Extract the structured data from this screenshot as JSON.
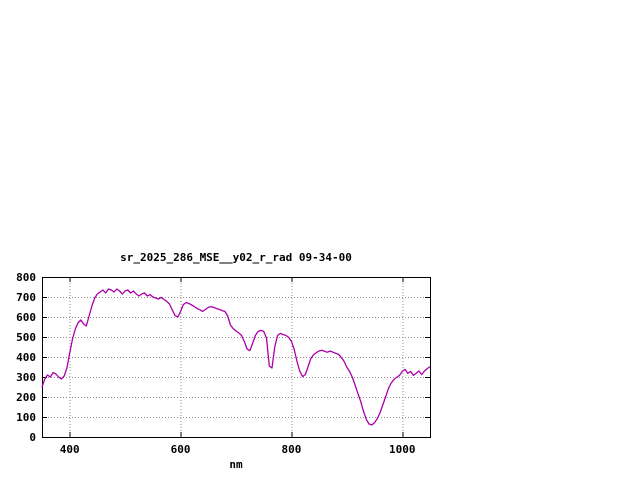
{
  "chart_data": {
    "type": "line",
    "title": "sr_2025_286_MSE__y02_r_rad 09-34-00",
    "xlabel": "nm",
    "ylabel": "",
    "xlim": [
      350,
      1050
    ],
    "ylim": [
      0,
      800
    ],
    "xticks": [
      400,
      600,
      800,
      1000
    ],
    "yticks": [
      0,
      100,
      200,
      300,
      400,
      500,
      600,
      700,
      800
    ],
    "grid": true,
    "legend_position": "none",
    "line_color": "#aa00aa",
    "series": [
      {
        "name": "sr_2025_286_MSE__y02_r_rad",
        "points": [
          [
            350,
            250
          ],
          [
            355,
            290
          ],
          [
            360,
            310
          ],
          [
            365,
            300
          ],
          [
            370,
            322
          ],
          [
            375,
            315
          ],
          [
            380,
            300
          ],
          [
            385,
            290
          ],
          [
            390,
            305
          ],
          [
            395,
            345
          ],
          [
            400,
            420
          ],
          [
            405,
            490
          ],
          [
            410,
            540
          ],
          [
            415,
            570
          ],
          [
            420,
            585
          ],
          [
            425,
            565
          ],
          [
            430,
            555
          ],
          [
            435,
            605
          ],
          [
            440,
            655
          ],
          [
            445,
            695
          ],
          [
            450,
            715
          ],
          [
            455,
            725
          ],
          [
            460,
            735
          ],
          [
            465,
            720
          ],
          [
            470,
            740
          ],
          [
            475,
            735
          ],
          [
            480,
            725
          ],
          [
            485,
            740
          ],
          [
            490,
            730
          ],
          [
            495,
            715
          ],
          [
            500,
            730
          ],
          [
            505,
            735
          ],
          [
            510,
            720
          ],
          [
            515,
            730
          ],
          [
            520,
            715
          ],
          [
            525,
            705
          ],
          [
            530,
            715
          ],
          [
            535,
            720
          ],
          [
            540,
            705
          ],
          [
            545,
            712
          ],
          [
            550,
            700
          ],
          [
            555,
            695
          ],
          [
            560,
            690
          ],
          [
            565,
            698
          ],
          [
            570,
            688
          ],
          [
            575,
            678
          ],
          [
            580,
            665
          ],
          [
            585,
            635
          ],
          [
            590,
            608
          ],
          [
            595,
            600
          ],
          [
            600,
            628
          ],
          [
            605,
            662
          ],
          [
            610,
            672
          ],
          [
            615,
            668
          ],
          [
            620,
            660
          ],
          [
            625,
            652
          ],
          [
            630,
            642
          ],
          [
            635,
            636
          ],
          [
            640,
            628
          ],
          [
            645,
            638
          ],
          [
            650,
            648
          ],
          [
            655,
            652
          ],
          [
            660,
            648
          ],
          [
            665,
            642
          ],
          [
            670,
            638
          ],
          [
            675,
            632
          ],
          [
            680,
            628
          ],
          [
            685,
            605
          ],
          [
            690,
            560
          ],
          [
            695,
            542
          ],
          [
            700,
            530
          ],
          [
            705,
            520
          ],
          [
            710,
            508
          ],
          [
            715,
            478
          ],
          [
            720,
            440
          ],
          [
            725,
            432
          ],
          [
            730,
            468
          ],
          [
            735,
            508
          ],
          [
            740,
            528
          ],
          [
            745,
            533
          ],
          [
            750,
            528
          ],
          [
            755,
            495
          ],
          [
            760,
            355
          ],
          [
            765,
            345
          ],
          [
            770,
            452
          ],
          [
            775,
            508
          ],
          [
            780,
            518
          ],
          [
            785,
            512
          ],
          [
            790,
            508
          ],
          [
            795,
            498
          ],
          [
            800,
            478
          ],
          [
            805,
            438
          ],
          [
            810,
            378
          ],
          [
            815,
            330
          ],
          [
            820,
            302
          ],
          [
            825,
            312
          ],
          [
            830,
            352
          ],
          [
            835,
            392
          ],
          [
            840,
            412
          ],
          [
            845,
            422
          ],
          [
            850,
            430
          ],
          [
            855,
            434
          ],
          [
            860,
            428
          ],
          [
            865,
            424
          ],
          [
            870,
            430
          ],
          [
            875,
            424
          ],
          [
            880,
            418
          ],
          [
            885,
            414
          ],
          [
            890,
            398
          ],
          [
            895,
            378
          ],
          [
            900,
            348
          ],
          [
            905,
            328
          ],
          [
            910,
            298
          ],
          [
            915,
            258
          ],
          [
            920,
            218
          ],
          [
            925,
            178
          ],
          [
            930,
            128
          ],
          [
            935,
            88
          ],
          [
            940,
            65
          ],
          [
            945,
            60
          ],
          [
            950,
            72
          ],
          [
            955,
            92
          ],
          [
            960,
            122
          ],
          [
            965,
            162
          ],
          [
            970,
            202
          ],
          [
            975,
            242
          ],
          [
            980,
            270
          ],
          [
            985,
            288
          ],
          [
            990,
            298
          ],
          [
            995,
            308
          ],
          [
            1000,
            328
          ],
          [
            1005,
            338
          ],
          [
            1010,
            318
          ],
          [
            1015,
            328
          ],
          [
            1020,
            308
          ],
          [
            1025,
            318
          ],
          [
            1030,
            330
          ],
          [
            1035,
            312
          ],
          [
            1040,
            330
          ],
          [
            1045,
            342
          ],
          [
            1050,
            352
          ]
        ]
      }
    ]
  }
}
